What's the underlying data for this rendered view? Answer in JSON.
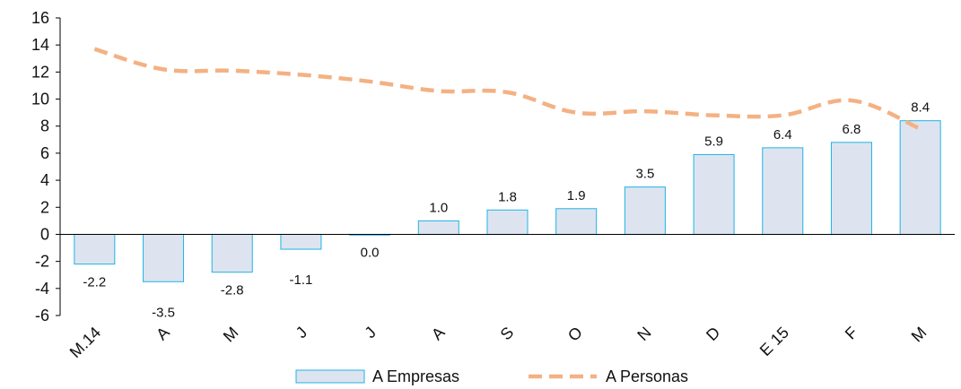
{
  "chart_data": {
    "type": "bar",
    "categories": [
      "M.14",
      "A",
      "M",
      "J",
      "J",
      "A",
      "S",
      "O",
      "N",
      "D",
      "E 15",
      "F",
      "M"
    ],
    "series": [
      {
        "name": "A Empresas",
        "kind": "bar",
        "values": [
          -2.2,
          -3.5,
          -2.8,
          -1.1,
          0.0,
          1.0,
          1.8,
          1.9,
          3.5,
          5.9,
          6.4,
          6.8,
          8.4
        ],
        "labels": [
          "-2.2",
          "-3.5",
          "-2.8",
          "-1.1",
          "0.0",
          "1.0",
          "1.8",
          "1.9",
          "3.5",
          "5.9",
          "6.4",
          "6.8",
          "8.4"
        ]
      },
      {
        "name": "A Personas",
        "kind": "line",
        "style": "dashed",
        "values": [
          13.7,
          12.2,
          12.1,
          11.8,
          11.3,
          10.6,
          10.5,
          9.0,
          9.1,
          8.8,
          8.8,
          9.9,
          7.8
        ]
      }
    ],
    "ylim": [
      -6,
      16
    ],
    "yticks": [
      "-6",
      "-4",
      "-2",
      "0",
      "2",
      "4",
      "6",
      "8",
      "10",
      "12",
      "14",
      "16"
    ],
    "grid": false,
    "legend": "bottom-center",
    "colors": {
      "bar_fill": "#dde4f0",
      "bar_stroke": "#1fb3e6",
      "line": "#f4b183",
      "axis": "#000000"
    }
  }
}
